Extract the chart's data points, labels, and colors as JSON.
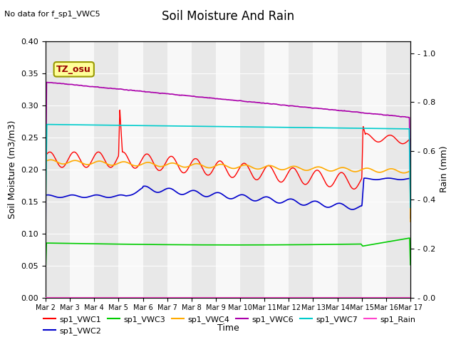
{
  "title": "Soil Moisture And Rain",
  "subtitle": "No data for f_sp1_VWC5",
  "xlabel": "Time",
  "ylabel_left": "Soil Moisture (m3/m3)",
  "ylabel_right": "Rain (mm)",
  "ylim_left": [
    0.0,
    0.4
  ],
  "ylim_right": [
    0.0,
    1.05
  ],
  "x_ticks_labels": [
    "Mar 2",
    "Mar 3",
    "Mar 4",
    "Mar 5",
    "Mar 6",
    "Mar 7",
    "Mar 8",
    "Mar 9",
    "Mar 10",
    "Mar 11",
    "Mar 12",
    "Mar 13",
    "Mar 14",
    "Mar 15",
    "Mar 16",
    "Mar 17"
  ],
  "legend_entries": [
    "sp1_VWC1",
    "sp1_VWC2",
    "sp1_VWC3",
    "sp1_VWC4",
    "sp1_VWC6",
    "sp1_VWC7",
    "sp1_Rain"
  ],
  "colors": {
    "VWC1": "#ff0000",
    "VWC2": "#0000cc",
    "VWC3": "#00cc00",
    "VWC4": "#ffaa00",
    "VWC6": "#aa00aa",
    "VWC7": "#00cccc",
    "Rain": "#ff44cc",
    "bg_gray": "#e8e8e8",
    "bg_white": "#f8f8f8"
  },
  "annotation": {
    "text": "TZ_osu",
    "facecolor": "#ffff99",
    "edgecolor": "#999900",
    "textcolor": "#990000"
  }
}
